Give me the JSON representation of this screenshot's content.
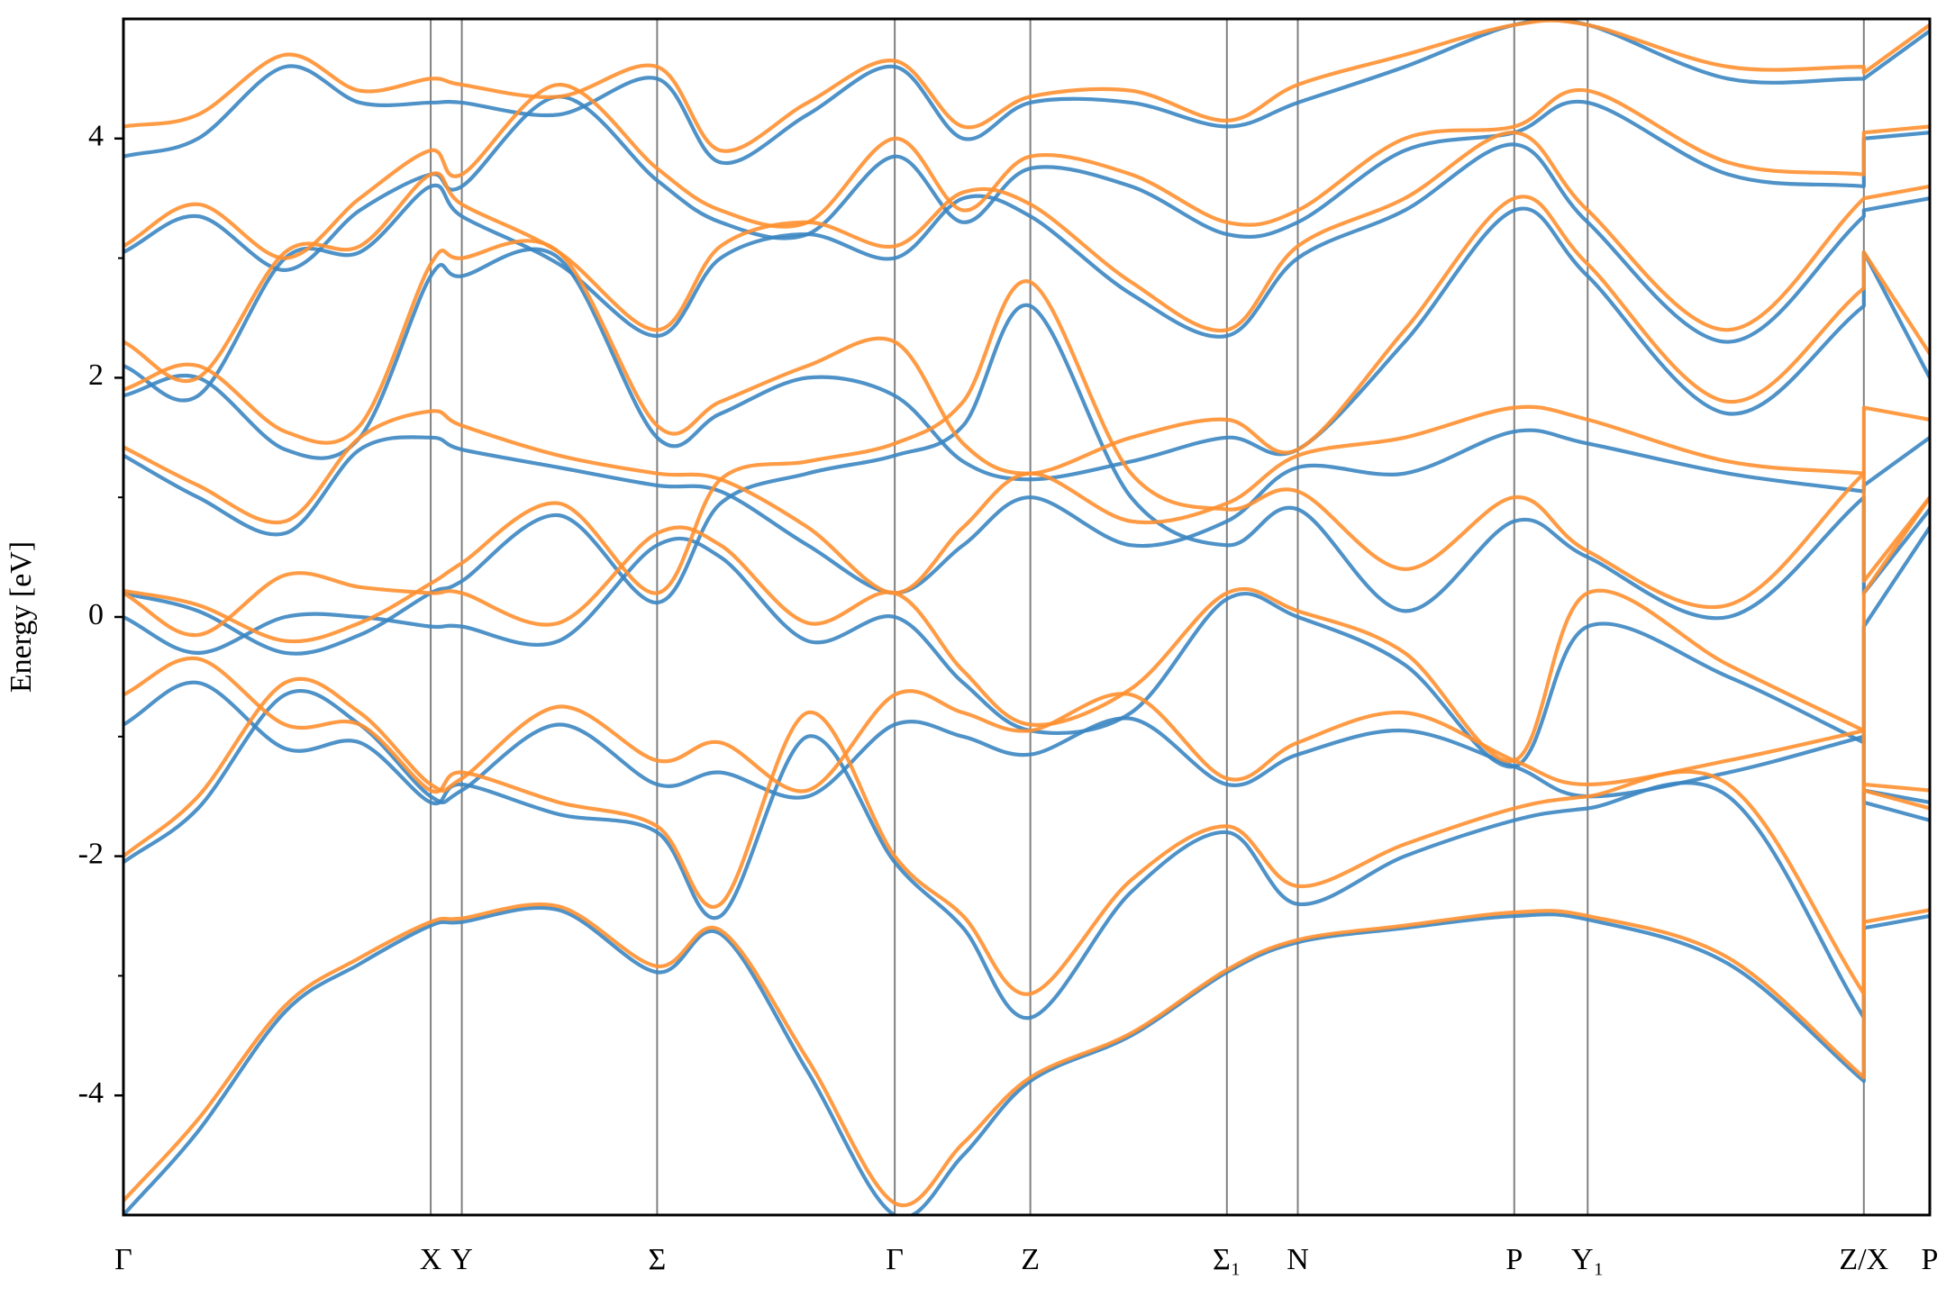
{
  "chart_data": {
    "type": "line",
    "ylabel": "Energy [eV]",
    "x": [
      0,
      0.6,
      1.3,
      1.9,
      2.47,
      2.72,
      3.5,
      4.29,
      4.8,
      5.5,
      6.2,
      6.75,
      7.29,
      8.1,
      8.87,
      9.44,
      10.3,
      11.18,
      11.77,
      12.9,
      13.99,
      13.99,
      14.52
    ],
    "xlim": [
      0,
      14.52
    ],
    "xticks": [
      {
        "value": 0,
        "label": "Γ"
      },
      {
        "value": 2.47,
        "label": "X"
      },
      {
        "value": 2.72,
        "label": "Y"
      },
      {
        "value": 4.29,
        "label": "Σ"
      },
      {
        "value": 6.2,
        "label": "Γ"
      },
      {
        "value": 7.29,
        "label": "Z"
      },
      {
        "value": 8.87,
        "label": "Σ₁"
      },
      {
        "value": 9.44,
        "label": "N"
      },
      {
        "value": 11.18,
        "label": "P"
      },
      {
        "value": 11.77,
        "label": "Y₁"
      },
      {
        "value": 13.99,
        "label": "Z/X"
      },
      {
        "value": 14.52,
        "label": "P"
      }
    ],
    "ylim": [
      -5,
      5
    ],
    "yticks": [
      -4,
      -2,
      0,
      2,
      4
    ],
    "yminorticks": [
      -3,
      -1,
      1,
      3
    ],
    "xgrid": true,
    "series": [
      {
        "color": "#3b86c2",
        "values": [
          -5.0,
          -4.3,
          -3.3,
          -2.9,
          -2.58,
          -2.55,
          -2.45,
          -2.97,
          -2.65,
          -3.8,
          -5.0,
          -4.5,
          -3.88,
          -3.5,
          -2.97,
          -2.72,
          -2.6,
          -2.5,
          -2.53,
          -2.9,
          -3.88,
          -2.6,
          -2.5
        ]
      },
      {
        "color": "#3b86c2",
        "values": [
          -2.05,
          -1.6,
          -0.65,
          -0.9,
          -1.5,
          -1.45,
          -0.9,
          -1.4,
          -1.3,
          -1.5,
          -0.9,
          -1.0,
          -1.15,
          -0.85,
          -1.4,
          -1.15,
          -0.95,
          -1.25,
          -1.5,
          -1.3,
          -1.0,
          -1.55,
          -1.7
        ]
      },
      {
        "color": "#3b86c2",
        "values": [
          -0.9,
          -0.55,
          -1.1,
          -1.05,
          -1.55,
          -1.4,
          -1.65,
          -1.8,
          -2.5,
          -1.0,
          -2.05,
          -2.6,
          -3.35,
          -2.3,
          -1.8,
          -2.4,
          -2.0,
          -1.7,
          -1.6,
          -1.5,
          -3.35,
          -1.45,
          -1.55
        ]
      },
      {
        "color": "#3b86c2",
        "values": [
          0.0,
          -0.3,
          0.0,
          0.0,
          -0.08,
          -0.08,
          -0.2,
          0.6,
          0.5,
          -0.2,
          0.0,
          -0.55,
          -0.95,
          -0.8,
          0.15,
          0.0,
          -0.4,
          -1.25,
          -0.08,
          -0.5,
          -1.05,
          -0.08,
          0.75
        ]
      },
      {
        "color": "#3b86c2",
        "values": [
          0.2,
          0.05,
          -0.3,
          -0.15,
          0.2,
          0.3,
          0.85,
          0.12,
          0.95,
          1.2,
          1.35,
          1.6,
          2.6,
          1.0,
          0.6,
          0.9,
          0.05,
          0.8,
          0.5,
          0.0,
          1.0,
          0.2,
          0.9
        ]
      },
      {
        "color": "#3b86c2",
        "values": [
          1.35,
          1.0,
          0.7,
          1.4,
          1.5,
          1.4,
          1.25,
          1.1,
          1.05,
          0.6,
          0.2,
          0.6,
          1.0,
          0.6,
          0.8,
          1.25,
          1.2,
          1.55,
          1.45,
          1.2,
          1.05,
          1.1,
          1.5
        ]
      },
      {
        "color": "#3b86c2",
        "values": [
          1.85,
          2.0,
          1.4,
          1.5,
          2.85,
          2.85,
          3.0,
          1.5,
          1.7,
          2.0,
          1.85,
          1.3,
          1.15,
          1.3,
          1.5,
          1.4,
          2.3,
          3.4,
          2.85,
          1.7,
          2.6,
          3.05,
          2.0
        ]
      },
      {
        "color": "#3b86c2",
        "values": [
          2.1,
          1.85,
          3.0,
          3.05,
          3.6,
          3.35,
          2.95,
          2.35,
          3.0,
          3.2,
          3.0,
          3.5,
          3.35,
          2.7,
          2.35,
          3.0,
          3.4,
          3.95,
          3.3,
          2.3,
          3.35,
          3.4,
          3.5
        ]
      },
      {
        "color": "#3b86c2",
        "values": [
          3.05,
          3.35,
          2.9,
          3.4,
          3.7,
          3.6,
          4.35,
          3.65,
          3.3,
          3.2,
          3.85,
          3.3,
          3.75,
          3.6,
          3.2,
          3.3,
          3.9,
          4.05,
          4.3,
          3.7,
          3.6,
          4.0,
          4.05
        ]
      },
      {
        "color": "#3b86c2",
        "values": [
          3.85,
          4.0,
          4.6,
          4.3,
          4.3,
          4.3,
          4.2,
          4.5,
          3.8,
          4.2,
          4.6,
          4.0,
          4.3,
          4.3,
          4.1,
          4.3,
          4.6,
          4.95,
          4.95,
          4.5,
          4.5,
          4.5,
          4.9
        ]
      },
      {
        "color": "#ff9030",
        "values": [
          -4.88,
          -4.2,
          -3.25,
          -2.85,
          -2.55,
          -2.52,
          -2.42,
          -2.92,
          -2.62,
          -3.7,
          -4.9,
          -4.4,
          -3.85,
          -3.48,
          -2.95,
          -2.7,
          -2.58,
          -2.47,
          -2.5,
          -2.85,
          -3.85,
          -2.55,
          -2.45
        ]
      },
      {
        "color": "#ff9030",
        "values": [
          -2.0,
          -1.5,
          -0.55,
          -0.8,
          -1.4,
          -1.35,
          -0.75,
          -1.2,
          -1.05,
          -1.45,
          -0.65,
          -0.8,
          -0.95,
          -0.65,
          -1.35,
          -1.05,
          -0.8,
          -1.2,
          -1.4,
          -1.2,
          -0.95,
          -1.45,
          -1.6
        ]
      },
      {
        "color": "#ff9030",
        "values": [
          -0.65,
          -0.35,
          -0.9,
          -0.9,
          -1.45,
          -1.3,
          -1.55,
          -1.75,
          -2.4,
          -0.8,
          -2.0,
          -2.5,
          -3.15,
          -2.2,
          -1.75,
          -2.25,
          -1.9,
          -1.6,
          -1.5,
          -1.4,
          -3.15,
          -1.4,
          -1.45
        ]
      },
      {
        "color": "#ff9030",
        "values": [
          0.2,
          -0.15,
          0.35,
          0.25,
          0.2,
          0.2,
          -0.05,
          0.7,
          0.6,
          -0.05,
          0.2,
          -0.45,
          -0.9,
          -0.6,
          0.2,
          0.05,
          -0.3,
          -1.2,
          0.2,
          -0.4,
          -0.95,
          0.2,
          1.0
        ]
      },
      {
        "color": "#ff9030",
        "values": [
          0.22,
          0.1,
          -0.2,
          -0.05,
          0.28,
          0.45,
          0.95,
          0.2,
          1.15,
          1.3,
          1.45,
          1.8,
          2.8,
          1.2,
          0.9,
          1.05,
          0.4,
          1.0,
          0.55,
          0.1,
          1.2,
          0.3,
          1.0
        ]
      },
      {
        "color": "#ff9030",
        "values": [
          1.42,
          1.1,
          0.8,
          1.5,
          1.72,
          1.6,
          1.35,
          1.2,
          1.15,
          0.75,
          0.2,
          0.75,
          1.2,
          0.8,
          0.95,
          1.35,
          1.5,
          1.75,
          1.65,
          1.3,
          1.2,
          1.75,
          1.65
        ]
      },
      {
        "color": "#ff9030",
        "values": [
          1.9,
          2.1,
          1.55,
          1.6,
          2.95,
          3.0,
          3.05,
          1.6,
          1.8,
          2.1,
          2.3,
          1.45,
          1.2,
          1.5,
          1.65,
          1.4,
          2.4,
          3.5,
          2.95,
          1.8,
          2.75,
          3.05,
          2.2
        ]
      },
      {
        "color": "#ff9030",
        "values": [
          2.3,
          2.0,
          3.05,
          3.1,
          3.7,
          3.45,
          3.05,
          2.4,
          3.1,
          3.3,
          3.1,
          3.55,
          3.45,
          2.8,
          2.4,
          3.1,
          3.5,
          4.05,
          3.4,
          2.4,
          3.5,
          3.5,
          3.6
        ]
      },
      {
        "color": "#ff9030",
        "values": [
          3.1,
          3.45,
          3.0,
          3.5,
          3.9,
          3.7,
          4.45,
          3.75,
          3.4,
          3.3,
          4.0,
          3.4,
          3.85,
          3.7,
          3.3,
          3.4,
          4.0,
          4.1,
          4.4,
          3.8,
          3.7,
          4.05,
          4.1
        ]
      },
      {
        "color": "#ff9030",
        "values": [
          4.1,
          4.2,
          4.7,
          4.4,
          4.5,
          4.45,
          4.35,
          4.6,
          3.9,
          4.3,
          4.65,
          4.1,
          4.35,
          4.4,
          4.15,
          4.45,
          4.7,
          4.95,
          4.95,
          4.6,
          4.6,
          4.55,
          4.95
        ]
      }
    ]
  }
}
